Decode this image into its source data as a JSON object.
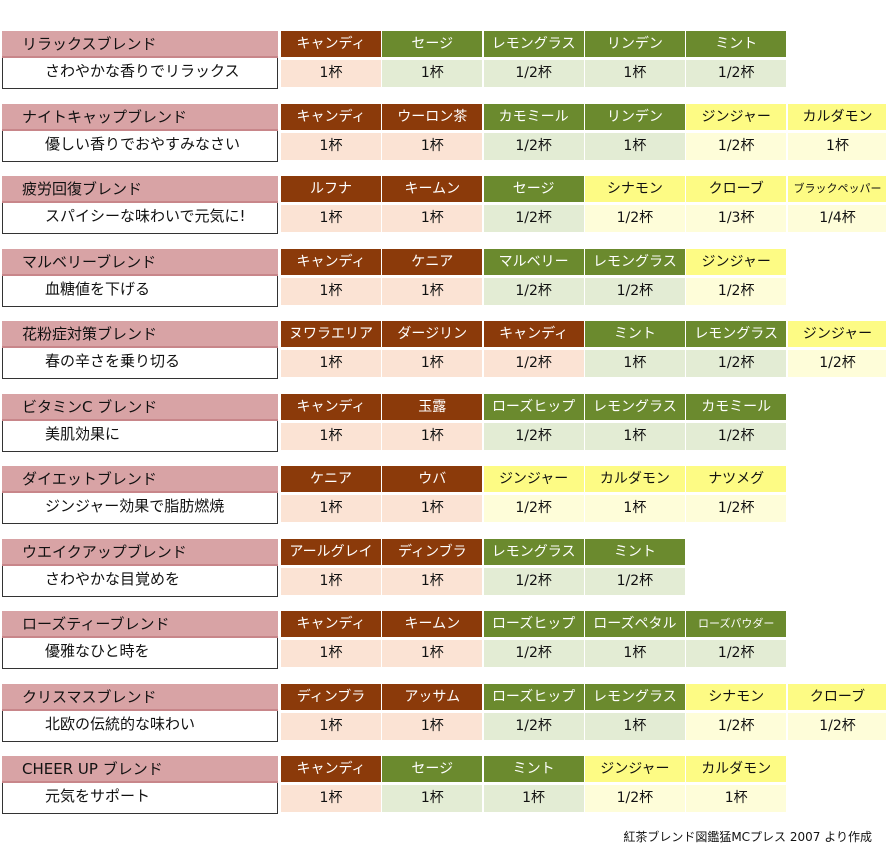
{
  "blends": [
    {
      "name": "リラックスブレンド",
      "desc": "さわやかな香りでリラックス",
      "ingredients": [
        {
          "name": "キャンディ",
          "amount": "1杯",
          "type": "tea"
        },
        {
          "name": "セージ",
          "amount": "1杯",
          "type": "herb"
        },
        {
          "name": "レモングラス",
          "amount": "1/2杯",
          "type": "herb"
        },
        {
          "name": "リンデン",
          "amount": "1杯",
          "type": "herb"
        },
        {
          "name": "ミント",
          "amount": "1/2杯",
          "type": "herb"
        }
      ]
    },
    {
      "name": "ナイトキャップブレンド",
      "desc": "優しい香りでおやすみなさい",
      "ingredients": [
        {
          "name": "キャンディ",
          "amount": "1杯",
          "type": "tea"
        },
        {
          "name": "ウーロン茶",
          "amount": "1杯",
          "type": "tea"
        },
        {
          "name": "カモミール",
          "amount": "1/2杯",
          "type": "herb"
        },
        {
          "name": "リンデン",
          "amount": "1杯",
          "type": "herb"
        },
        {
          "name": "ジンジャー",
          "amount": "1/2杯",
          "type": "spice"
        },
        {
          "name": "カルダモン",
          "amount": "1杯",
          "type": "spice"
        }
      ]
    },
    {
      "name": "疲労回復ブレンド",
      "desc": "スパイシーな味わいで元気に!",
      "ingredients": [
        {
          "name": "ルフナ",
          "amount": "1杯",
          "type": "tea"
        },
        {
          "name": "キームン",
          "amount": "1杯",
          "type": "tea"
        },
        {
          "name": "セージ",
          "amount": "1/2杯",
          "type": "herb"
        },
        {
          "name": "シナモン",
          "amount": "1/2杯",
          "type": "spice"
        },
        {
          "name": "クローブ",
          "amount": "1/3杯",
          "type": "spice"
        },
        {
          "name": "ブラックペッパー",
          "amount": "1/4杯",
          "type": "spice",
          "small": true
        }
      ]
    },
    {
      "name": "マルベリーブレンド",
      "desc": "血糖値を下げる",
      "ingredients": [
        {
          "name": "キャンディ",
          "amount": "1杯",
          "type": "tea"
        },
        {
          "name": "ケニア",
          "amount": "1杯",
          "type": "tea"
        },
        {
          "name": "マルベリー",
          "amount": "1/2杯",
          "type": "herb"
        },
        {
          "name": "レモングラス",
          "amount": "1/2杯",
          "type": "herb"
        },
        {
          "name": "ジンジャー",
          "amount": "1/2杯",
          "type": "spice"
        }
      ]
    },
    {
      "name": "花粉症対策ブレンド",
      "desc": "春の辛さを乗り切る",
      "ingredients": [
        {
          "name": "ヌワラエリア",
          "amount": "1杯",
          "type": "tea"
        },
        {
          "name": "ダージリン",
          "amount": "1杯",
          "type": "tea"
        },
        {
          "name": "キャンディ",
          "amount": "1/2杯",
          "type": "tea"
        },
        {
          "name": "ミント",
          "amount": "1杯",
          "type": "herb"
        },
        {
          "name": "レモングラス",
          "amount": "1/2杯",
          "type": "herb"
        },
        {
          "name": "ジンジャー",
          "amount": "1/2杯",
          "type": "spice"
        }
      ]
    },
    {
      "name": "ビタミンC ブレンド",
      "desc": "美肌効果に",
      "ingredients": [
        {
          "name": "キャンディ",
          "amount": "1杯",
          "type": "tea"
        },
        {
          "name": "玉露",
          "amount": "1杯",
          "type": "tea"
        },
        {
          "name": "ローズヒップ",
          "amount": "1/2杯",
          "type": "herb"
        },
        {
          "name": "レモングラス",
          "amount": "1杯",
          "type": "herb"
        },
        {
          "name": "カモミール",
          "amount": "1/2杯",
          "type": "herb"
        }
      ]
    },
    {
      "name": "ダイエットブレンド",
      "desc": "ジンジャー効果で脂肪燃焼",
      "ingredients": [
        {
          "name": "ケニア",
          "amount": "1杯",
          "type": "tea"
        },
        {
          "name": "ウバ",
          "amount": "1杯",
          "type": "tea"
        },
        {
          "name": "ジンジャー",
          "amount": "1/2杯",
          "type": "spice"
        },
        {
          "name": "カルダモン",
          "amount": "1杯",
          "type": "spice"
        },
        {
          "name": "ナツメグ",
          "amount": "1/2杯",
          "type": "spice"
        }
      ]
    },
    {
      "name": "ウエイクアップブレンド",
      "desc": "さわやかな目覚めを",
      "ingredients": [
        {
          "name": "アールグレイ",
          "amount": "1杯",
          "type": "tea"
        },
        {
          "name": "ディンブラ",
          "amount": "1杯",
          "type": "tea"
        },
        {
          "name": "レモングラス",
          "amount": "1/2杯",
          "type": "herb"
        },
        {
          "name": "ミント",
          "amount": "1/2杯",
          "type": "herb"
        }
      ]
    },
    {
      "name": "ローズティーブレンド",
      "desc": "優雅なひと時を",
      "ingredients": [
        {
          "name": "キャンディ",
          "amount": "1杯",
          "type": "tea"
        },
        {
          "name": "キームン",
          "amount": "1杯",
          "type": "tea"
        },
        {
          "name": "ローズヒップ",
          "amount": "1/2杯",
          "type": "herb"
        },
        {
          "name": "ローズペタル",
          "amount": "1杯",
          "type": "herb"
        },
        {
          "name": "ローズパウダー",
          "amount": "1/2杯",
          "type": "herb",
          "small": true
        }
      ]
    },
    {
      "name": "クリスマスブレンド",
      "desc": "北欧の伝統的な味わい",
      "ingredients": [
        {
          "name": "ディンブラ",
          "amount": "1杯",
          "type": "tea"
        },
        {
          "name": "アッサム",
          "amount": "1杯",
          "type": "tea"
        },
        {
          "name": "ローズヒップ",
          "amount": "1/2杯",
          "type": "herb"
        },
        {
          "name": "レモングラス",
          "amount": "1杯",
          "type": "herb"
        },
        {
          "name": "シナモン",
          "amount": "1/2杯",
          "type": "spice"
        },
        {
          "name": "クローブ",
          "amount": "1/2杯",
          "type": "spice"
        }
      ]
    },
    {
      "name": "CHEER UP ブレンド",
      "desc": "元気をサポート",
      "ingredients": [
        {
          "name": "キャンディ",
          "amount": "1杯",
          "type": "tea"
        },
        {
          "name": "セージ",
          "amount": "1杯",
          "type": "herb"
        },
        {
          "name": "ミント",
          "amount": "1杯",
          "type": "herb"
        },
        {
          "name": "ジンジャー",
          "amount": "1/2杯",
          "type": "spice"
        },
        {
          "name": "カルダモン",
          "amount": "1杯",
          "type": "spice"
        }
      ]
    }
  ],
  "source": "紅茶ブレンド図鑑猛MCプレス 2007 より作成",
  "colors": {
    "tea": "#8b3a0a",
    "herb": "#6b8a2e",
    "spice": "#fdfb84",
    "name_bg": "#d8a3a5"
  }
}
